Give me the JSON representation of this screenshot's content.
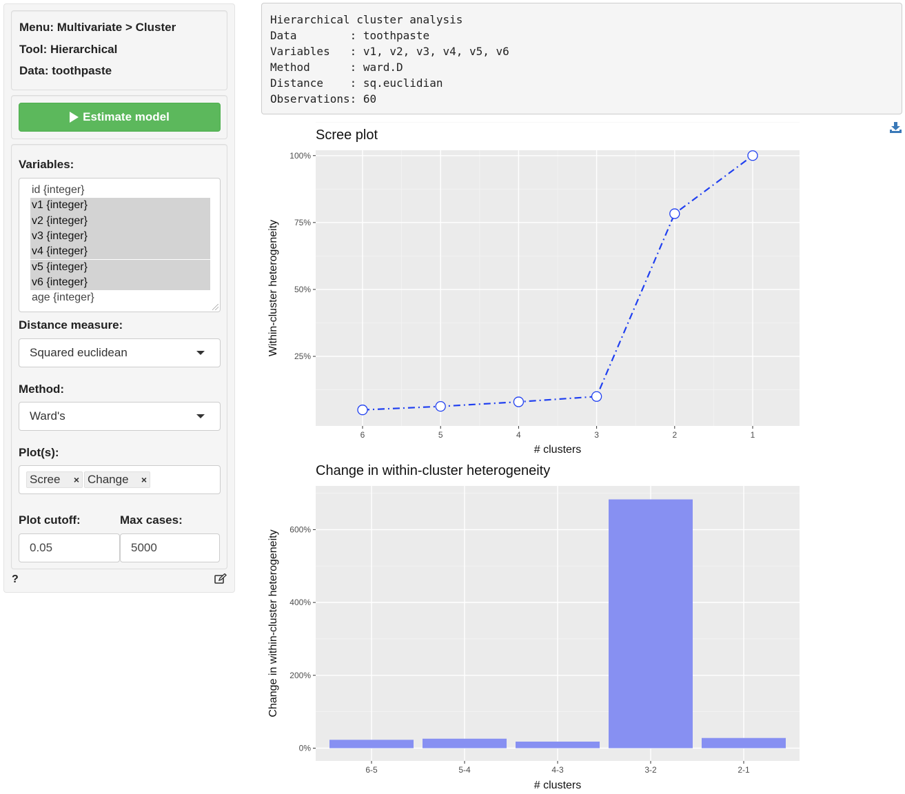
{
  "sidebar": {
    "menu": "Menu: Multivariate > Cluster",
    "tool": "Tool: Hierarchical",
    "data": "Data: toothpaste",
    "estimate_label": "Estimate model",
    "variables_label": "Variables:",
    "variables": [
      {
        "label": "id {integer}",
        "selected": false
      },
      {
        "label": "v1 {integer}",
        "selected": true
      },
      {
        "label": "v2 {integer}",
        "selected": true
      },
      {
        "label": "v3 {integer}",
        "selected": true
      },
      {
        "label": "v4 {integer}",
        "selected": true
      },
      {
        "label": "v5 {integer}",
        "selected": true
      },
      {
        "label": "v6 {integer}",
        "selected": true
      },
      {
        "label": "age {integer}",
        "selected": false
      }
    ],
    "distance_label": "Distance measure:",
    "distance_value": "Squared euclidean",
    "method_label": "Method:",
    "method_value": "Ward's",
    "plots_label": "Plot(s):",
    "plots_tags": [
      "Scree",
      "Change"
    ],
    "plot_cutoff_label": "Plot cutoff:",
    "plot_cutoff_value": "0.05",
    "max_cases_label": "Max cases:",
    "max_cases_value": "5000",
    "help": "?"
  },
  "summary": {
    "lines": [
      "Hierarchical cluster analysis",
      "Data        : toothpaste",
      "Variables   : v1, v2, v3, v4, v5, v6",
      "Method      : ward.D",
      "Distance    : sq.euclidian",
      "Observations: 60"
    ]
  },
  "icons": {
    "download": "download-icon",
    "play": "play-icon",
    "edit": "edit-icon"
  },
  "colors": {
    "estimate_button": "#5cb85c",
    "scree_line": "#1f3ff0",
    "bar_fill": "#8790f2",
    "panel_bg": "#ebebeb"
  },
  "chart_data": [
    {
      "type": "line",
      "title": "Scree plot",
      "xlabel": "# clusters",
      "ylabel": "Within-cluster heterogeneity",
      "categories": [
        "6",
        "5",
        "4",
        "3",
        "2",
        "1"
      ],
      "values": [
        5,
        6.3,
        8,
        10,
        78.3,
        100
      ],
      "ylim": [
        -1,
        102
      ],
      "yticks": [
        25,
        50,
        75,
        100
      ],
      "ytick_labels": [
        "25%",
        "50%",
        "75%",
        "100%"
      ],
      "grid": true
    },
    {
      "type": "bar",
      "title": "Change in within-cluster heterogeneity",
      "xlabel": "# clusters",
      "ylabel": "Change in within-cluster heterogeneity",
      "categories": [
        "6-5",
        "5-4",
        "4-3",
        "3-2",
        "2-1"
      ],
      "values": [
        23,
        26,
        18,
        683,
        28
      ],
      "ylim": [
        -35,
        720
      ],
      "yticks": [
        0,
        200,
        400,
        600
      ],
      "ytick_labels": [
        "0%",
        "200%",
        "400%",
        "600%"
      ],
      "grid": true
    }
  ]
}
